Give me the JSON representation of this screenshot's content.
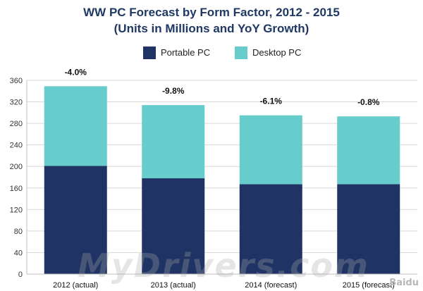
{
  "chart_data": {
    "type": "bar",
    "stacked": true,
    "title": "WW PC Forecast by Form Factor, 2012 - 2015",
    "subtitle": "(Units in Millions and YoY Growth)",
    "categories": [
      "2012 (actual)",
      "2013 (actual)",
      "2014 (forecast)",
      "2015 (forecast)"
    ],
    "series": [
      {
        "name": "Portable PC",
        "color": "#1f3464",
        "values": [
          201,
          178,
          167,
          167
        ]
      },
      {
        "name": "Desktop PC",
        "color": "#66cccc",
        "values": [
          148,
          136,
          128,
          126
        ]
      }
    ],
    "annotations": [
      "-4.0%",
      "-9.8%",
      "-6.1%",
      "-0.8%"
    ],
    "ylim": [
      0,
      360
    ],
    "yticks": [
      "0",
      "40",
      "80",
      "120",
      "160",
      "200",
      "240",
      "280",
      "320",
      "360"
    ],
    "grid": true,
    "legend_position": "top"
  },
  "watermark": "MyDrivers.com",
  "logo_text": "Baidu"
}
